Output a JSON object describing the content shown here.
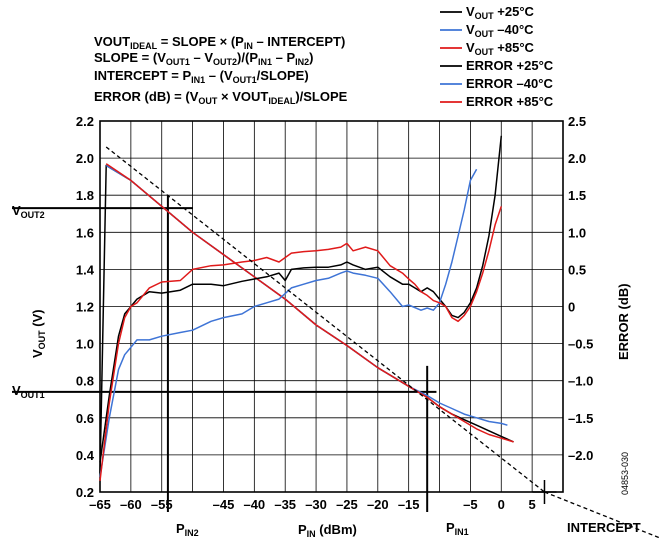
{
  "figure_id": "04853-030",
  "equations": [
    {
      "a": "VOUT",
      "a_sub": "IDEAL",
      "b": " = SLOPE × (P",
      "b_sub": "IN",
      "c": " – INTERCEPT)"
    },
    {
      "a": "SLOPE = (V",
      "a_sub": "OUT1",
      "b": " – V",
      "b_sub": "OUT2",
      "c": ")/(P",
      "c_sub": "IN1",
      "d": " – P",
      "d_sub": "IN2",
      "e": ")"
    },
    {
      "a": "INTERCEPT = P",
      "a_sub": "IN1",
      "b": " – (V",
      "b_sub": "OUT1",
      "c": "/SLOPE)"
    },
    {
      "a": "ERROR (dB) = (V",
      "a_sub": "OUT",
      "b": " × VOUT",
      "b_sub": "IDEAL",
      "c": ")/SLOPE"
    }
  ],
  "markers": {
    "vout2": {
      "main": "V",
      "sub": "OUT2"
    },
    "vout1": {
      "main": "V",
      "sub": "OUT1"
    },
    "pin2": {
      "main": "P",
      "sub": "IN2"
    },
    "pin1": {
      "main": "P",
      "sub": "IN1"
    },
    "intercept": "INTERCEPT"
  },
  "chart_data": {
    "type": "line",
    "x_label": {
      "main": "P",
      "sub": "IN",
      "rest": " (dBm)"
    },
    "y_left_label": {
      "main": "V",
      "sub": "OUT",
      "rest": " (V)"
    },
    "y_right_label": "ERROR (dB)",
    "xlim": [
      -65,
      10
    ],
    "ylim_left": [
      0.2,
      2.2
    ],
    "ylim_right": [
      -2.5,
      2.5
    ],
    "x_ticks": [
      -65,
      -60,
      -55,
      -45,
      -40,
      -35,
      -30,
      -25,
      -20,
      -15,
      -5,
      0,
      5
    ],
    "x_tick_labels": [
      "–65",
      "–60",
      "–55",
      "–45",
      "–40",
      "–35",
      "–30",
      "–25",
      "–20",
      "–15",
      "–5",
      "0",
      "5"
    ],
    "y_left_ticks": [
      0.2,
      0.4,
      0.6,
      0.8,
      1.0,
      1.2,
      1.4,
      1.6,
      1.8,
      2.0,
      2.2
    ],
    "y_left_tick_labels": [
      "0.2",
      "0.4",
      "0.6",
      "0.8",
      "1.0",
      "1.2",
      "1.4",
      "1.6",
      "1.8",
      "2.0",
      "2.2"
    ],
    "y_right_ticks": [
      -2.0,
      -1.5,
      -1.0,
      -0.5,
      0,
      0.5,
      1.0,
      1.5,
      2.0,
      2.5
    ],
    "y_right_tick_labels": [
      "–2.0",
      "–1.5",
      "–1.0",
      "–0.5",
      "0",
      "0.5",
      "1.0",
      "1.5",
      "2.0",
      "2.5"
    ],
    "grid": true,
    "legend_position": "top-right",
    "ideal_line": {
      "x": [
        -64,
        7
      ],
      "y": [
        2.06,
        0.2
      ]
    },
    "reference_lines": {
      "vout2": 1.73,
      "vout1": 0.74,
      "pin2": -54,
      "pin1": -12,
      "pin2_top": 1.8,
      "pin1_top": 0.88,
      "vout2_x_end": -50,
      "vout1_x_end": -10.5,
      "intercept": 7
    },
    "series": [
      {
        "name": "VOUT +25°C",
        "axis": "left",
        "color": "#000000",
        "x": [
          -65,
          -64,
          -60,
          -55,
          -50,
          -45,
          -40,
          -35,
          -30,
          -25,
          -20,
          -15,
          -12,
          -10,
          -8,
          -6,
          -4,
          -2,
          0,
          2
        ],
        "y": [
          0.3,
          1.96,
          1.88,
          1.74,
          1.6,
          1.48,
          1.36,
          1.24,
          1.1,
          0.99,
          0.87,
          0.77,
          0.71,
          0.66,
          0.62,
          0.59,
          0.56,
          0.53,
          0.5,
          0.47
        ]
      },
      {
        "name": "VOUT –40°C",
        "axis": "left",
        "color": "#3e74d6",
        "x": [
          -64,
          -60,
          -55,
          -50,
          -45,
          -40,
          -35,
          -30,
          -25,
          -20,
          -15,
          -12,
          -10,
          -8,
          -6,
          -4,
          -2,
          0,
          1
        ],
        "y": [
          1.96,
          1.88,
          1.74,
          1.6,
          1.48,
          1.36,
          1.24,
          1.1,
          0.99,
          0.87,
          0.77,
          0.72,
          0.68,
          0.65,
          0.62,
          0.6,
          0.58,
          0.57,
          0.56
        ]
      },
      {
        "name": "VOUT +85°C",
        "axis": "left",
        "color": "#e01a1a",
        "x": [
          -64,
          -60,
          -55,
          -50,
          -45,
          -40,
          -35,
          -30,
          -25,
          -20,
          -15,
          -12,
          -10,
          -8,
          -6,
          -4,
          -2,
          0,
          2
        ],
        "y": [
          1.97,
          1.88,
          1.74,
          1.6,
          1.48,
          1.36,
          1.24,
          1.1,
          0.99,
          0.87,
          0.77,
          0.71,
          0.66,
          0.62,
          0.58,
          0.54,
          0.51,
          0.49,
          0.47
        ]
      },
      {
        "name": "ERROR +25°C",
        "axis": "right",
        "color": "#000000",
        "x": [
          -65,
          -63.5,
          -62,
          -61,
          -60,
          -59,
          -57,
          -55,
          -52,
          -50,
          -47,
          -45,
          -42,
          -40,
          -38,
          -36,
          -35,
          -34,
          -32,
          -30,
          -28,
          -26,
          -25,
          -24,
          -22,
          -20,
          -18,
          -16,
          -15,
          -14,
          -13,
          -12,
          -11,
          -10,
          -9,
          -8,
          -7,
          -6,
          -5,
          -4,
          -3,
          -2,
          -1,
          0
        ],
        "y": [
          -2.1,
          -1.2,
          -0.4,
          -0.1,
          0.0,
          0.1,
          0.2,
          0.18,
          0.22,
          0.3,
          0.3,
          0.28,
          0.34,
          0.37,
          0.4,
          0.45,
          0.35,
          0.5,
          0.52,
          0.53,
          0.53,
          0.56,
          0.6,
          0.56,
          0.5,
          0.53,
          0.4,
          0.3,
          0.3,
          0.25,
          0.2,
          0.25,
          0.2,
          0.1,
          0.0,
          -0.12,
          -0.15,
          -0.08,
          0.05,
          0.25,
          0.55,
          0.95,
          1.5,
          2.3
        ]
      },
      {
        "name": "ERROR –40°C",
        "axis": "right",
        "color": "#3e74d6",
        "x": [
          -65,
          -63.5,
          -62,
          -61,
          -60,
          -59,
          -57,
          -55,
          -52,
          -50,
          -47,
          -45,
          -42,
          -40,
          -38,
          -36,
          -34,
          -32,
          -30,
          -28,
          -26,
          -25,
          -24,
          -22,
          -20,
          -18,
          -16,
          -15,
          -13,
          -12,
          -11,
          -10,
          -9,
          -8,
          -7,
          -6,
          -5,
          -4
        ],
        "y": [
          -2.3,
          -1.5,
          -0.85,
          -0.65,
          -0.55,
          -0.45,
          -0.45,
          -0.4,
          -0.35,
          -0.32,
          -0.2,
          -0.15,
          -0.1,
          0.0,
          0.05,
          0.1,
          0.25,
          0.3,
          0.35,
          0.38,
          0.45,
          0.48,
          0.45,
          0.42,
          0.38,
          0.2,
          0.0,
          0.02,
          -0.05,
          -0.02,
          -0.05,
          0.05,
          0.3,
          0.6,
          0.95,
          1.3,
          1.7,
          1.85
        ]
      },
      {
        "name": "ERROR +85°C",
        "axis": "right",
        "color": "#e01a1a",
        "x": [
          -65,
          -63.5,
          -62,
          -61,
          -60,
          -59,
          -57,
          -55,
          -52,
          -50,
          -47,
          -45,
          -42,
          -40,
          -38,
          -36,
          -34,
          -32,
          -30,
          -28,
          -26,
          -25,
          -24,
          -22,
          -20,
          -18,
          -16,
          -15,
          -14,
          -13,
          -12,
          -11,
          -10,
          -9,
          -8,
          -7,
          -6,
          -5,
          -4,
          -3,
          -2,
          -1,
          0
        ],
        "y": [
          -2.35,
          -1.3,
          -0.5,
          -0.15,
          0.0,
          0.05,
          0.25,
          0.33,
          0.35,
          0.5,
          0.55,
          0.56,
          0.6,
          0.62,
          0.66,
          0.6,
          0.72,
          0.74,
          0.75,
          0.77,
          0.8,
          0.85,
          0.75,
          0.8,
          0.75,
          0.55,
          0.45,
          0.37,
          0.3,
          0.2,
          0.15,
          0.08,
          0.05,
          0.0,
          -0.15,
          -0.2,
          -0.12,
          0.0,
          0.2,
          0.45,
          0.75,
          1.1,
          1.35
        ]
      }
    ]
  }
}
